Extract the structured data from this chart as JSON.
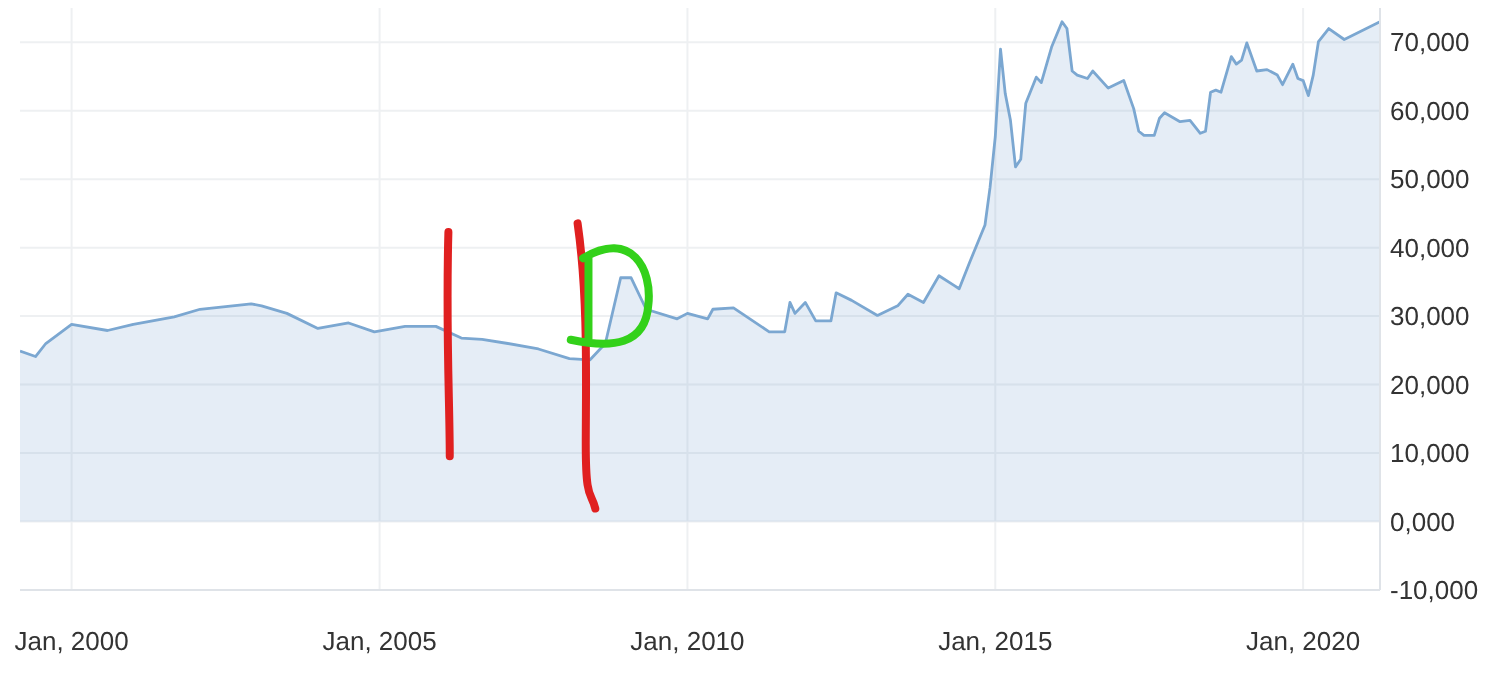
{
  "chart_data": {
    "type": "area",
    "x": [
      "1999-03",
      "1999-06",
      "1999-08",
      "2000-01",
      "2000-08",
      "2001-01",
      "2001-09",
      "2002-02",
      "2002-12",
      "2003-02",
      "2003-07",
      "2004-01",
      "2004-07",
      "2004-12",
      "2005-06",
      "2005-12",
      "2006-05",
      "2006-09",
      "2007-02",
      "2007-08",
      "2008-02",
      "2008-06",
      "2008-09",
      "2008-12",
      "2009-02",
      "2009-05",
      "2009-11",
      "2010-01",
      "2010-05",
      "2010-06",
      "2010-10",
      "2011-05",
      "2011-08",
      "2011-09",
      "2011-10",
      "2011-12",
      "2012-02",
      "2012-05",
      "2012-06",
      "2012-09",
      "2013-02",
      "2013-06",
      "2013-08",
      "2013-11",
      "2014-02",
      "2014-05",
      "2014-06",
      "2014-08",
      "2014-11",
      "2014-12",
      "2015-01",
      "2015-02",
      "2015-03",
      "2015-04",
      "2015-05",
      "2015-06",
      "2015-07",
      "2015-09",
      "2015-10",
      "2015-12",
      "2016-02",
      "2016-03",
      "2016-04",
      "2016-05",
      "2016-07",
      "2016-08",
      "2016-11",
      "2017-02",
      "2017-04",
      "2017-05",
      "2017-06",
      "2017-08",
      "2017-09",
      "2017-10",
      "2018-01",
      "2018-03",
      "2018-05",
      "2018-06",
      "2018-07",
      "2018-08",
      "2018-09",
      "2018-11",
      "2018-12",
      "2019-01",
      "2019-02",
      "2019-04",
      "2019-06",
      "2019-08",
      "2019-09",
      "2019-11",
      "2019-12",
      "2020-01",
      "2020-02",
      "2020-03",
      "2020-04",
      "2020-06",
      "2020-09",
      "2021-04"
    ],
    "values": [
      24900,
      24100,
      26000,
      28800,
      27900,
      28800,
      29900,
      31000,
      31800,
      31500,
      30400,
      28200,
      29000,
      27700,
      28500,
      28500,
      26800,
      26600,
      26000,
      25200,
      23800,
      23600,
      26000,
      35600,
      35600,
      31000,
      29600,
      30400,
      29600,
      31000,
      31200,
      27700,
      27700,
      32000,
      30400,
      32000,
      29300,
      29300,
      33400,
      32300,
      30100,
      31500,
      33200,
      32000,
      35900,
      34500,
      34000,
      37800,
      43300,
      48800,
      56200,
      69000,
      62500,
      58600,
      51800,
      52900,
      61100,
      64900,
      64100,
      69300,
      73000,
      72000,
      65800,
      65200,
      64700,
      65800,
      63300,
      64400,
      60300,
      57000,
      56400,
      56400,
      58900,
      59700,
      58400,
      58600,
      56700,
      57000,
      62700,
      63000,
      62700,
      67900,
      66800,
      67400,
      69900,
      65800,
      66000,
      65200,
      63800,
      66800,
      64700,
      64400,
      62200,
      65200,
      70100,
      72000,
      70400,
      73000
    ],
    "color": "#7ba7d1",
    "xlim": [
      "1999-03",
      "2021-04"
    ],
    "xticks": [
      {
        "value": "2000-01",
        "label": "Jan, 2000"
      },
      {
        "value": "2005-01",
        "label": "Jan, 2005"
      },
      {
        "value": "2010-01",
        "label": "Jan, 2010"
      },
      {
        "value": "2015-01",
        "label": "Jan, 2015"
      },
      {
        "value": "2020-01",
        "label": "Jan, 2020"
      }
    ],
    "ylim": [
      -10000,
      75000
    ],
    "yticks": [
      {
        "value": -10000,
        "label": "-10,000"
      },
      {
        "value": 0,
        "label": "0,000"
      },
      {
        "value": 10000,
        "label": "10,000"
      },
      {
        "value": 20000,
        "label": "20,000"
      },
      {
        "value": 30000,
        "label": "30,000"
      },
      {
        "value": 40000,
        "label": "40,000"
      },
      {
        "value": 50000,
        "label": "50,000"
      },
      {
        "value": 60000,
        "label": "60,000"
      },
      {
        "value": 70000,
        "label": "70,000"
      }
    ],
    "grid": true
  }
}
